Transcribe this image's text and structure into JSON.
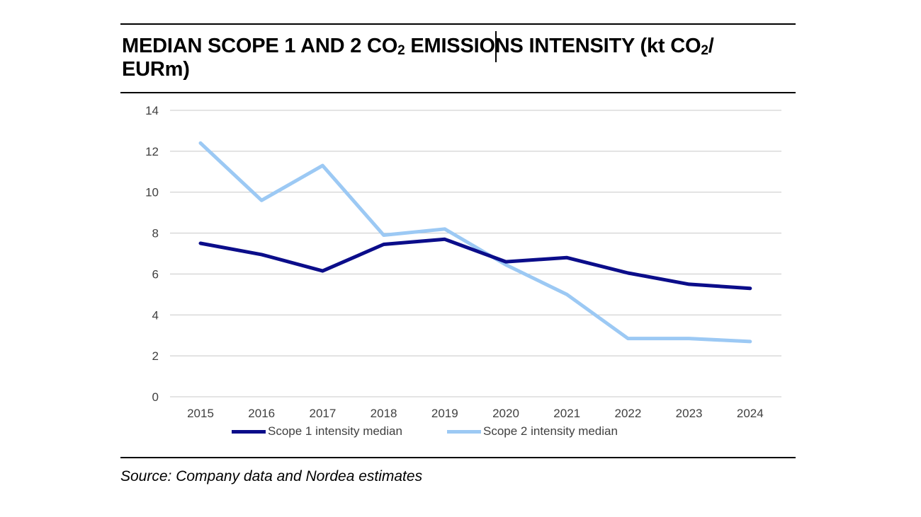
{
  "title": {
    "part1": "MEDIAN SCOPE 1 AND 2 CO",
    "sub1": "2",
    "part2": " EMISSIONS INTENSITY (kt CO",
    "sub2": "2",
    "part3": "/",
    "part4": "EURm)"
  },
  "source": "Source: Company data and Nordea estimates",
  "colors": {
    "scope1": "#0b0d8a",
    "scope2": "#9cc9f4",
    "grid": "#c8c8c8",
    "tick_text": "#404040"
  },
  "chart_data": {
    "type": "line",
    "title": "MEDIAN SCOPE 1 AND 2 CO2 EMISSIONS INTENSITY (kt CO2/ EURm)",
    "xlabel": "",
    "ylabel": "",
    "categories": [
      "2015",
      "2016",
      "2017",
      "2018",
      "2019",
      "2020",
      "2021",
      "2022",
      "2023",
      "2024"
    ],
    "ylim": [
      0,
      14
    ],
    "yticks": [
      "0",
      "2",
      "4",
      "6",
      "8",
      "10",
      "12",
      "14"
    ],
    "grid": true,
    "legend_position": "bottom",
    "series": [
      {
        "name": "Scope 1 intensity median",
        "color": "#0b0d8a",
        "values": [
          7.5,
          6.95,
          6.15,
          7.45,
          7.7,
          6.6,
          6.8,
          6.05,
          5.5,
          5.3
        ]
      },
      {
        "name": "Scope 2 intensity median",
        "color": "#9cc9f4",
        "values": [
          12.4,
          9.6,
          11.3,
          7.9,
          8.2,
          6.45,
          5.0,
          2.85,
          2.85,
          2.7
        ]
      }
    ]
  }
}
